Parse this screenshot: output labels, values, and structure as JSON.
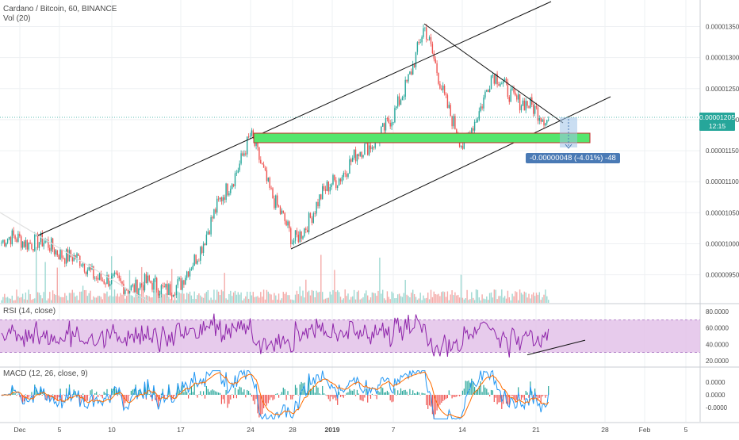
{
  "legend": {
    "main_title": "Cardano / Bitcoin, 60, BINANCE",
    "volume_label": "Vol (20)",
    "rsi_label": "RSI (14, close)",
    "macd_label": "MACD (12, 26, close, 9)"
  },
  "price_tags": {
    "last_price": "0.00001205",
    "countdown": "12:15"
  },
  "measure": {
    "label": "-0.00000048 (-4.01%) -48"
  },
  "colors": {
    "up": "#26a69a",
    "down": "#ef5350",
    "rsi_line": "#8e24aa",
    "rsi_band": "#e1bee7",
    "macd_line": "#2196f3",
    "signal_line": "#ff6d00",
    "zone_fill": "#55e66d",
    "zone_border": "#c62828",
    "last_price_bg": "#26a69a",
    "countdown_bg": "#26a69a",
    "measure_bg": "#4a7ab5"
  },
  "chart_data": [
    {
      "type": "candlestick",
      "series": [
        {
          "name": "Cardano / Bitcoin, 60, BINANCE"
        }
      ],
      "x_ticks": [
        "Dec",
        "5",
        "10",
        "17",
        "24",
        "28",
        "2019",
        "7",
        "14",
        "21",
        "28",
        "Feb",
        "5"
      ],
      "y_ticks": [
        "0.00001350",
        "0.00001300",
        "0.00001250",
        "0.00001200",
        "0.00001150",
        "0.00001100",
        "0.00001050",
        "0.00001000",
        "0.00000950"
      ],
      "ylim": [
        9.1e-06,
        1.38e-05
      ],
      "anchors": [
        [
          "Dec",
          1.01e-05
        ],
        [
          "5",
          9.9e-06
        ],
        [
          "10",
          9.35e-06
        ],
        [
          "17",
          9.3e-06
        ],
        [
          "24",
          1.17e-05
        ],
        [
          "28",
          1e-05
        ],
        [
          "2019",
          1.1e-05
        ],
        [
          "7",
          1.2e-05
        ],
        [
          "9",
          1.345e-05
        ],
        [
          "14",
          1.15e-05
        ],
        [
          "17",
          1.27e-05
        ],
        [
          "21",
          1.21e-05
        ],
        [
          "23",
          1.205e-05
        ]
      ],
      "last_price": 1.205e-05,
      "annotations": {
        "support_zone": [
          1.16e-05,
          1.17e-05
        ],
        "measure_change": "-0.00000048 (-4.01%) -48"
      }
    },
    {
      "type": "bar",
      "series": [
        {
          "name": "Vol (20)"
        }
      ],
      "note": "volume histogram overlaid at bottom of price pane"
    },
    {
      "type": "line",
      "series": [
        {
          "name": "RSI (14, close)"
        }
      ],
      "y_ticks": [
        "80.0000",
        "60.0000",
        "40.0000",
        "20.0000"
      ],
      "ylim": [
        15,
        85
      ],
      "band": [
        30,
        70
      ]
    },
    {
      "type": "line",
      "series": [
        {
          "name": "MACD (12, 26, close, 9)"
        }
      ],
      "y_ticks": [
        "0.0000",
        "0.0000",
        "-0.0000"
      ],
      "ylim": [
        -3e-07,
        3e-07
      ]
    }
  ]
}
